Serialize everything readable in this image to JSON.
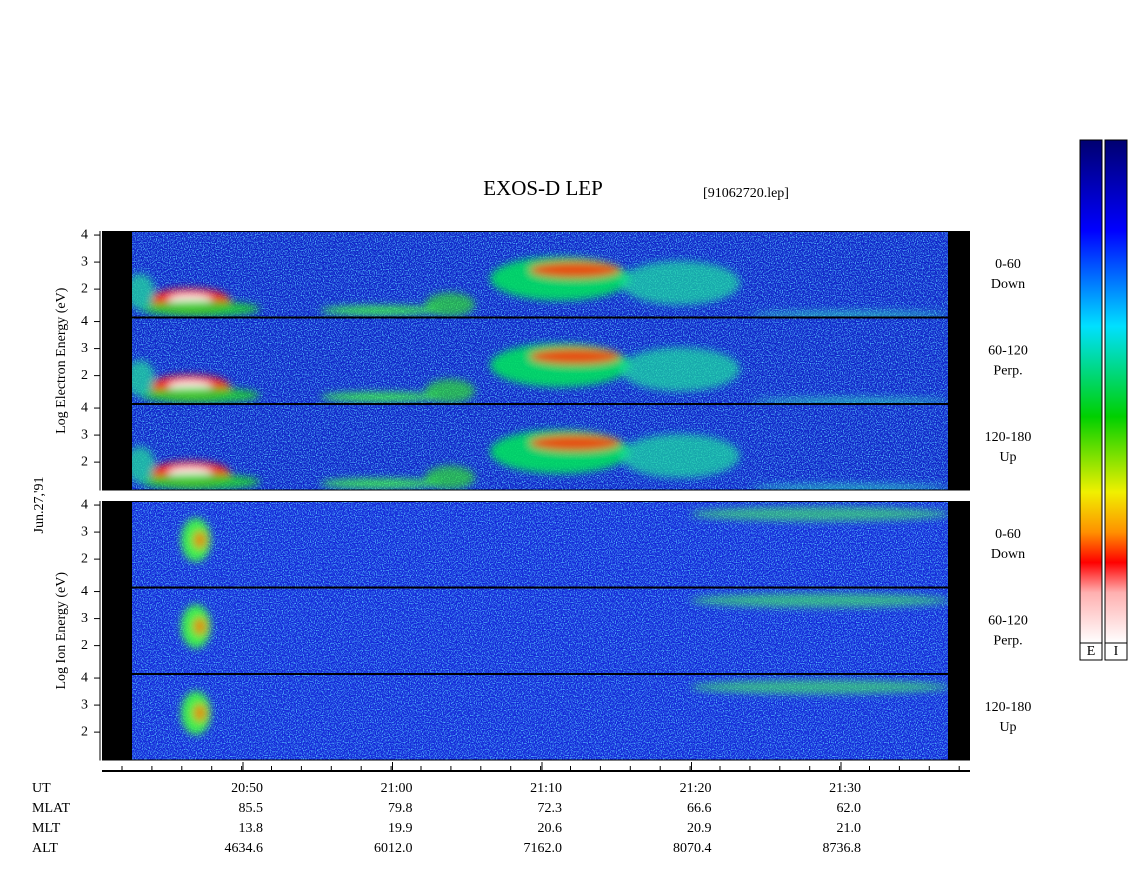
{
  "chart_data": {
    "type": "spectrogram",
    "title": "EXOS-D LEP",
    "file": "[91062720.lep]",
    "date": "Jun.27,'91",
    "ylim": [
      0.95,
      4.15
    ],
    "yticks": [
      2,
      3,
      4
    ],
    "groups": [
      {
        "ylabel": "Log Electron Energy (eV)",
        "panels": [
          [
            "0-60",
            "Down"
          ],
          [
            "60-120",
            "Perp."
          ],
          [
            "120-180",
            "Up"
          ]
        ]
      },
      {
        "ylabel": "Log Ion Energy (eV)",
        "panels": [
          [
            "0-60",
            "Down"
          ],
          [
            "60-120",
            "Perp."
          ],
          [
            "120-180",
            "Up"
          ]
        ]
      }
    ],
    "x_label": "UT",
    "categories": [
      "20:50",
      "21:00",
      "21:10",
      "21:20",
      "21:30"
    ],
    "rows": [
      {
        "name": "MLAT",
        "values": [
          "85.5",
          "79.8",
          "72.3",
          "66.6",
          "62.0"
        ]
      },
      {
        "name": "MLT",
        "values": [
          "13.8",
          "19.9",
          "20.6",
          "20.9",
          "21.0"
        ]
      },
      {
        "name": "ALT",
        "values": [
          "4634.6",
          "6012.0",
          "7162.0",
          "8070.4",
          "8736.8"
        ]
      }
    ],
    "colorbar_labels": [
      "E",
      "I"
    ]
  }
}
